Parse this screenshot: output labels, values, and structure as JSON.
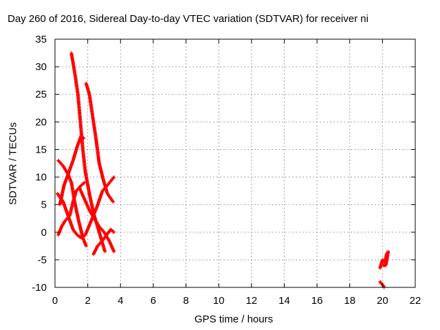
{
  "chart_data": {
    "type": "scatter",
    "title": "Day 260 of 2016, Sidereal Day-to-day VTEC variation (SDTVAR) for receiver ni",
    "xlabel": "GPS time / hours",
    "ylabel": "SDTVAR / TECUs",
    "xlim": [
      0,
      22
    ],
    "ylim": [
      -10,
      35
    ],
    "xticks": [
      0,
      2,
      4,
      6,
      8,
      10,
      12,
      14,
      16,
      18,
      20,
      22
    ],
    "yticks": [
      -10,
      -5,
      0,
      5,
      10,
      15,
      20,
      25,
      30,
      35
    ],
    "grid": true,
    "marker": "plus",
    "color": "#ff0000",
    "series": [
      {
        "values": [
          [
            1.0,
            32.5
          ],
          [
            1.2,
            29.0
          ],
          [
            1.4,
            25.0
          ],
          [
            1.55,
            20.0
          ],
          [
            1.7,
            15.0
          ],
          [
            1.85,
            11.0
          ],
          [
            2.1,
            7.0
          ],
          [
            2.35,
            3.5
          ],
          [
            2.6,
            1.0
          ],
          [
            2.85,
            -1.5
          ],
          [
            3.05,
            -3.5
          ]
        ]
      },
      {
        "values": [
          [
            1.9,
            27.0
          ],
          [
            2.1,
            25.0
          ],
          [
            2.3,
            21.0
          ],
          [
            2.5,
            17.0
          ],
          [
            2.7,
            12.5
          ],
          [
            2.95,
            9.5
          ],
          [
            3.2,
            7.0
          ],
          [
            3.55,
            5.5
          ]
        ]
      },
      {
        "values": [
          [
            0.2,
            13.0
          ],
          [
            0.5,
            12.0
          ],
          [
            0.8,
            10.5
          ],
          [
            1.0,
            9.0
          ],
          [
            1.2,
            5.5
          ],
          [
            1.45,
            2.0
          ],
          [
            1.7,
            -1.0
          ],
          [
            1.9,
            -2.5
          ]
        ]
      },
      {
        "values": [
          [
            0.15,
            7.0
          ],
          [
            0.5,
            5.5
          ],
          [
            0.8,
            3.0
          ],
          [
            1.1,
            0.5
          ],
          [
            1.35,
            -0.5
          ],
          [
            1.6,
            -1.0
          ],
          [
            1.85,
            -0.5
          ],
          [
            2.2,
            2.0
          ],
          [
            2.55,
            4.5
          ],
          [
            2.9,
            7.5
          ],
          [
            3.2,
            8.5
          ],
          [
            3.6,
            10.0
          ]
        ]
      },
      {
        "values": [
          [
            0.2,
            -0.5
          ],
          [
            0.4,
            1.0
          ],
          [
            0.6,
            2.0
          ],
          [
            0.9,
            3.0
          ],
          [
            1.1,
            5.5
          ],
          [
            1.3,
            7.5
          ],
          [
            1.6,
            8.5
          ],
          [
            1.8,
            9.0
          ]
        ]
      },
      {
        "values": [
          [
            0.3,
            5.0
          ],
          [
            0.55,
            8.5
          ],
          [
            0.8,
            10.5
          ],
          [
            1.1,
            13.0
          ],
          [
            1.35,
            15.5
          ],
          [
            1.6,
            17.5
          ],
          [
            1.75,
            17.0
          ]
        ]
      },
      {
        "values": [
          [
            1.5,
            8.0
          ],
          [
            1.8,
            6.0
          ],
          [
            2.1,
            4.0
          ],
          [
            2.4,
            2.5
          ],
          [
            2.7,
            1.0
          ],
          [
            3.0,
            0.0
          ],
          [
            3.3,
            -1.5
          ],
          [
            3.6,
            -3.5
          ]
        ]
      },
      {
        "values": [
          [
            2.35,
            -4.0
          ],
          [
            2.6,
            -2.5
          ],
          [
            2.9,
            -1.5
          ],
          [
            3.15,
            -0.5
          ],
          [
            3.4,
            0.5
          ],
          [
            3.6,
            0.0
          ]
        ]
      },
      {
        "values": [
          [
            19.85,
            -6.5
          ],
          [
            20.0,
            -5.0
          ],
          [
            20.15,
            -5.5
          ],
          [
            20.25,
            -4.0
          ],
          [
            20.35,
            -3.5
          ],
          [
            20.2,
            -6.0
          ],
          [
            20.05,
            -6.0
          ]
        ]
      },
      {
        "values": [
          [
            19.85,
            -9.0
          ],
          [
            20.0,
            -9.5
          ],
          [
            20.1,
            -10.0
          ]
        ]
      }
    ]
  }
}
